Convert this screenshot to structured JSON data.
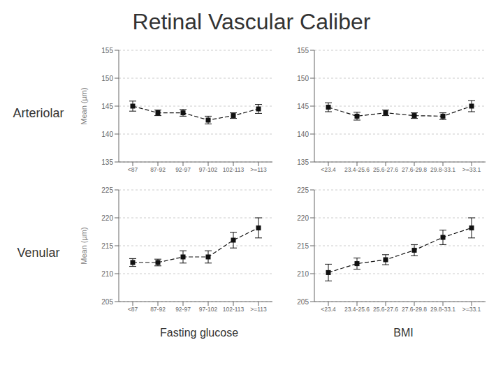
{
  "title": "Retinal Vascular Caliber",
  "chart_data": [
    {
      "type": "line",
      "categories": [
        "<87",
        "87-92",
        "92-97",
        "97-102",
        "102-113",
        ">=113"
      ],
      "values": [
        145.0,
        143.8,
        143.8,
        142.5,
        143.3,
        144.5
      ],
      "error": [
        0.9,
        0.5,
        0.6,
        0.7,
        0.5,
        0.8
      ],
      "ylim": [
        135,
        155
      ],
      "yticks": [
        135,
        140,
        145,
        150,
        155
      ],
      "ylabel": "Mean (µm)",
      "annotations": [
        "Arteriolar"
      ],
      "grid": true,
      "color": "#111111",
      "marker": "square",
      "line_style": "dashed"
    },
    {
      "type": "line",
      "categories": [
        "<23.4",
        "23.4-25.6",
        "25.6-27.6",
        "27.6-29.8",
        "29.8-33.1",
        ">=33.1"
      ],
      "values": [
        144.8,
        143.2,
        143.8,
        143.3,
        143.2,
        145.0
      ],
      "error": [
        0.8,
        0.7,
        0.5,
        0.5,
        0.6,
        1.0
      ],
      "ylim": [
        135,
        155
      ],
      "yticks": [
        135,
        140,
        145,
        150,
        155
      ],
      "grid": true,
      "color": "#111111",
      "marker": "square",
      "line_style": "dashed"
    },
    {
      "type": "line",
      "categories": [
        "<87",
        "87-92",
        "92-97",
        "97-102",
        "102-113",
        ">=113"
      ],
      "values": [
        212.0,
        212.0,
        213.0,
        213.0,
        216.0,
        218.2
      ],
      "error": [
        0.7,
        0.6,
        1.1,
        1.1,
        1.4,
        1.8
      ],
      "ylim": [
        205,
        225
      ],
      "yticks": [
        205,
        210,
        215,
        220,
        225
      ],
      "ylabel": "Mean (µm)",
      "annotations": [
        "Venular"
      ],
      "xlabel": "Fasting glucose",
      "grid": true,
      "color": "#111111",
      "marker": "square",
      "line_style": "dashed"
    },
    {
      "type": "line",
      "categories": [
        "<23.4",
        "23.4-25.6",
        "25.6-27.6",
        "27.6-29.8",
        "29.8-33.1",
        ">=33.1"
      ],
      "values": [
        210.2,
        211.8,
        212.5,
        214.2,
        216.5,
        218.2
      ],
      "error": [
        1.5,
        1.0,
        0.9,
        1.0,
        1.3,
        1.8
      ],
      "ylim": [
        205,
        225
      ],
      "yticks": [
        205,
        210,
        215,
        220,
        225
      ],
      "xlabel": "BMI",
      "grid": true,
      "color": "#111111",
      "marker": "square",
      "line_style": "dashed"
    }
  ]
}
